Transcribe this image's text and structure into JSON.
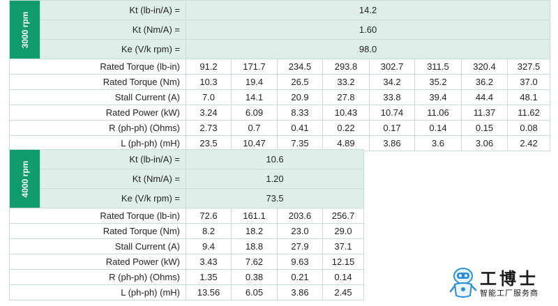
{
  "section_3000": {
    "side_label": "3000 rpm",
    "constants": [
      {
        "label": "Kt (lb-in/A) =",
        "value": "14.2"
      },
      {
        "label": "Kt (Nm/A) =",
        "value": "1.60"
      },
      {
        "label": "Ke (V/k rpm) =",
        "value": "98.0"
      }
    ],
    "rows": [
      {
        "label": "Rated Torque (lb-in)",
        "values": [
          "91.2",
          "171.7",
          "234.5",
          "293.8",
          "302.7",
          "311.5",
          "320.4",
          "327.5"
        ]
      },
      {
        "label": "Rated Torque (Nm)",
        "values": [
          "10.3",
          "19.4",
          "26.5",
          "33.2",
          "34.2",
          "35.2",
          "36.2",
          "37.0"
        ]
      },
      {
        "label": "Stall Current (A)",
        "values": [
          "7.0",
          "14.1",
          "20.9",
          "27.8",
          "33.8",
          "39.4",
          "44.4",
          "48.1"
        ]
      },
      {
        "label": "Rated Power (kW)",
        "values": [
          "3.24",
          "6.09",
          "8.33",
          "10.43",
          "10.74",
          "11.06",
          "11.37",
          "11.62"
        ]
      },
      {
        "label": "R (ph-ph) (Ohms)",
        "values": [
          "2.73",
          "0.7",
          "0.41",
          "0.22",
          "0.17",
          "0.14",
          "0.15",
          "0.08"
        ]
      },
      {
        "label": "L (ph-ph) (mH)",
        "values": [
          "23.5",
          "10.47",
          "7.35",
          "4.89",
          "3.86",
          "3.6",
          "3.06",
          "2.42"
        ]
      }
    ]
  },
  "section_4000": {
    "side_label": "4000 rpm",
    "constants": [
      {
        "label": "Kt (lb-in/A) =",
        "value": "10.6"
      },
      {
        "label": "Kt (Nm/A) =",
        "value": "1.20"
      },
      {
        "label": "Ke (V/k rpm) =",
        "value": "73.5"
      }
    ],
    "rows": [
      {
        "label": "Rated Torque (lb-in)",
        "values": [
          "72.6",
          "161.1",
          "203.6",
          "256.7"
        ]
      },
      {
        "label": "Rated Torque (Nm)",
        "values": [
          "8.2",
          "18.2",
          "23.0",
          "29.0"
        ]
      },
      {
        "label": "Stall Current (A)",
        "values": [
          "9.4",
          "18.8",
          "27.9",
          "37.1"
        ]
      },
      {
        "label": "Rated Power (kW)",
        "values": [
          "3.43",
          "7.62",
          "9.63",
          "12.15"
        ]
      },
      {
        "label": "R (ph-ph) (Ohms)",
        "values": [
          "1.35",
          "0.38",
          "0.21",
          "0.14"
        ]
      },
      {
        "label": "L (ph-ph) (mH)",
        "values": [
          "13.56",
          "6.05",
          "3.86",
          "2.45"
        ]
      }
    ]
  },
  "watermark": {
    "name": "工博士",
    "tagline": "智能工厂服务商",
    "icon": "robot-mascot-icon",
    "colors": {
      "accent": "#2a8fd8",
      "text": "#1a1a1a"
    }
  },
  "colors": {
    "side_band": "#0f9b6c",
    "constant_row_bg": "#ddefe8",
    "grid_line": "#c8ddd6"
  }
}
